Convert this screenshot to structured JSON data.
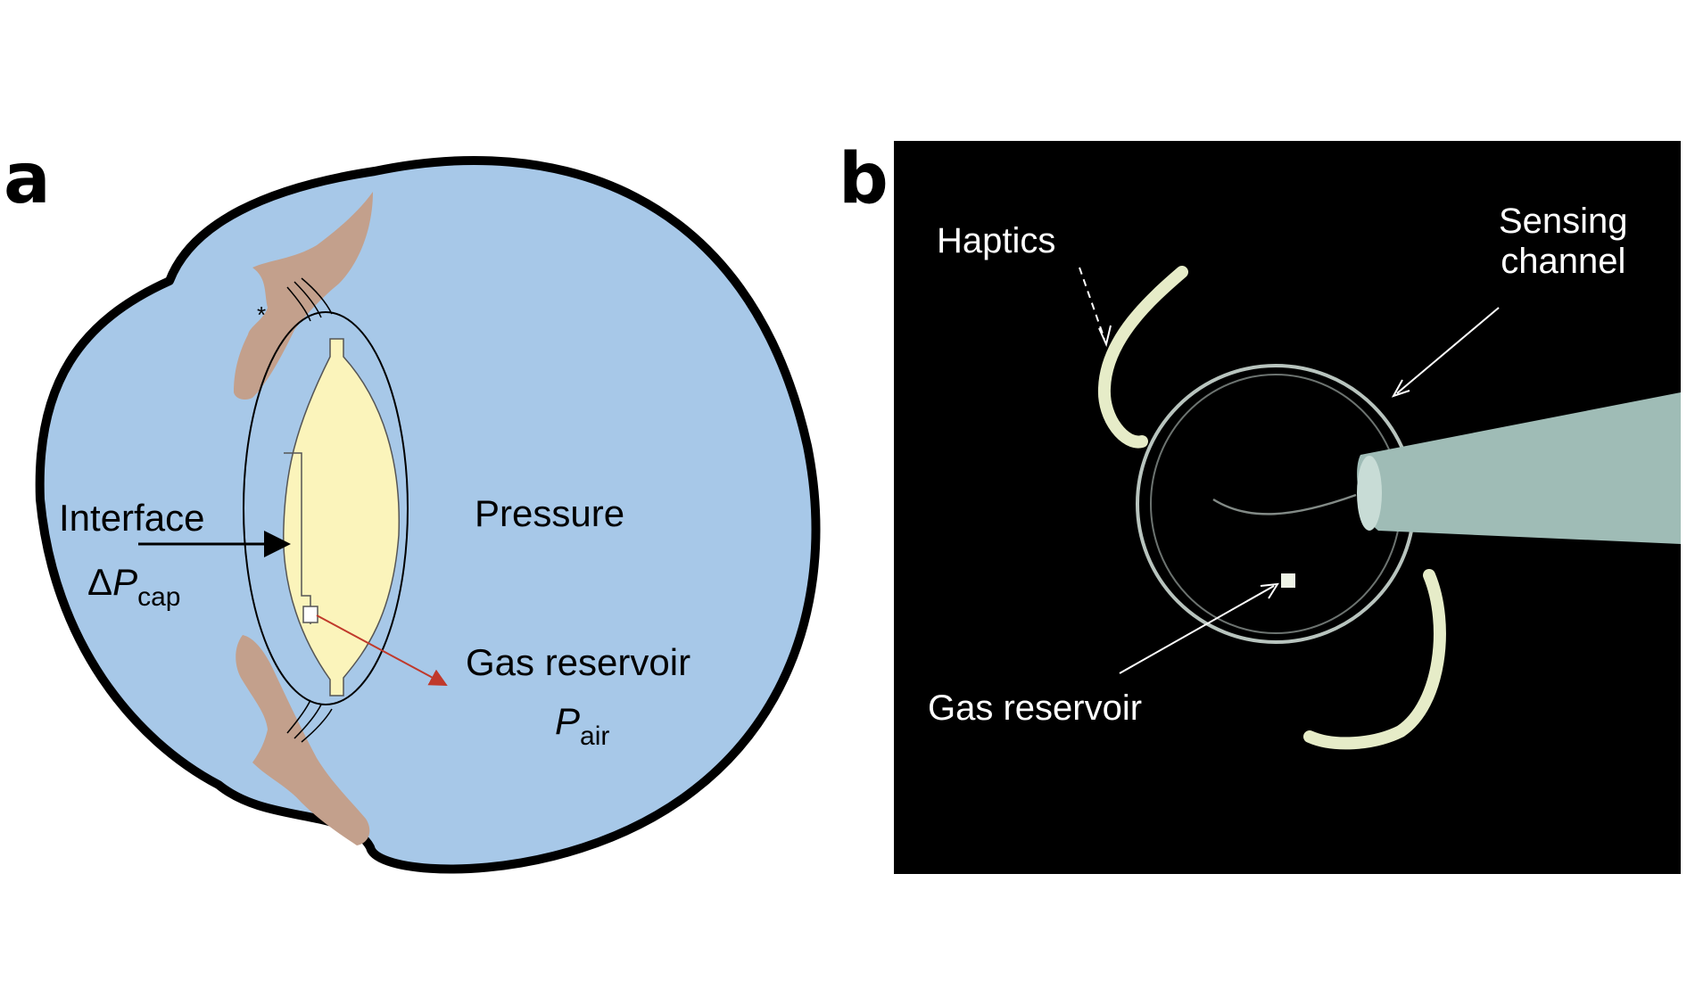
{
  "panel_a": {
    "letter": "a",
    "labels": {
      "interface": "Interface",
      "delta_symbol": "Δ",
      "p_symbol": "P",
      "cap_sub": "cap",
      "pressure": "Pressure",
      "gas_reservoir": "Gas reservoir",
      "p_air_symbol": "P",
      "air_sub": "air",
      "asterisk": "*"
    },
    "colors": {
      "eye_fill": "#a7c8e8",
      "eye_outline": "#000000",
      "tissue": "#c3a08c",
      "lens_fill": "#fbf4bb",
      "red_arrow": "#c0392b"
    }
  },
  "panel_b": {
    "letter": "b",
    "labels": {
      "haptics": "Haptics",
      "sensing_line1": "Sensing",
      "sensing_line2": "channel",
      "gas_reservoir": "Gas reservoir"
    },
    "colors": {
      "background": "#000000",
      "probe": "#9fbcb6",
      "ring": "#d8e6df",
      "haptic": "#e6ecc8"
    }
  }
}
